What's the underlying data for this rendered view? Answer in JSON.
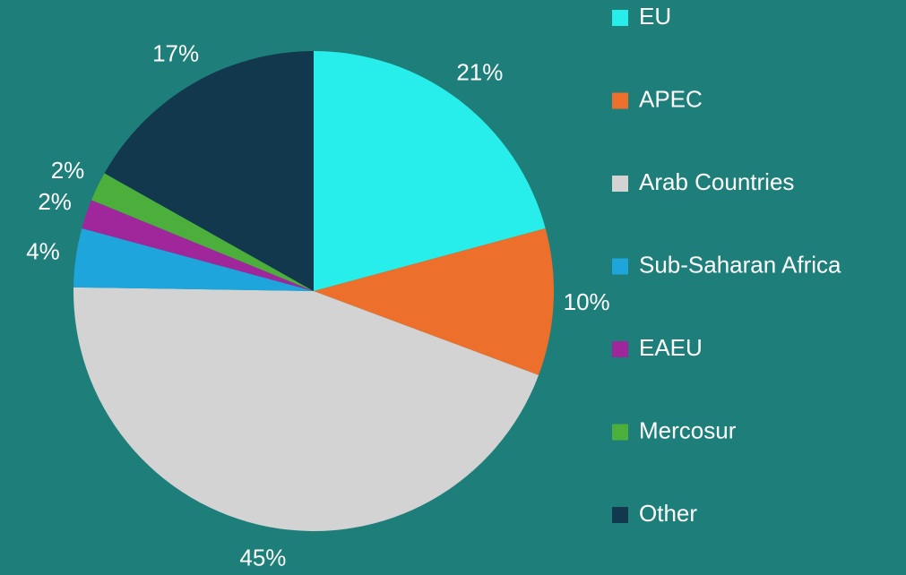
{
  "chart_data": {
    "type": "pie",
    "categories": [
      "EU",
      "APEC",
      "Arab Countries",
      "Sub-Saharan Africa",
      "EAEU",
      "Mercosur",
      "Other"
    ],
    "values": [
      21,
      10,
      45,
      4,
      2,
      2,
      17
    ],
    "value_labels": [
      "21%",
      "10%",
      "45%",
      "4%",
      "2%",
      "2%",
      "17%"
    ],
    "colors": [
      "#27eeea",
      "#ec6f2c",
      "#d3d3d3",
      "#1ea5dc",
      "#a0279b",
      "#4caf3c",
      "#12384d"
    ],
    "legend": "right"
  }
}
